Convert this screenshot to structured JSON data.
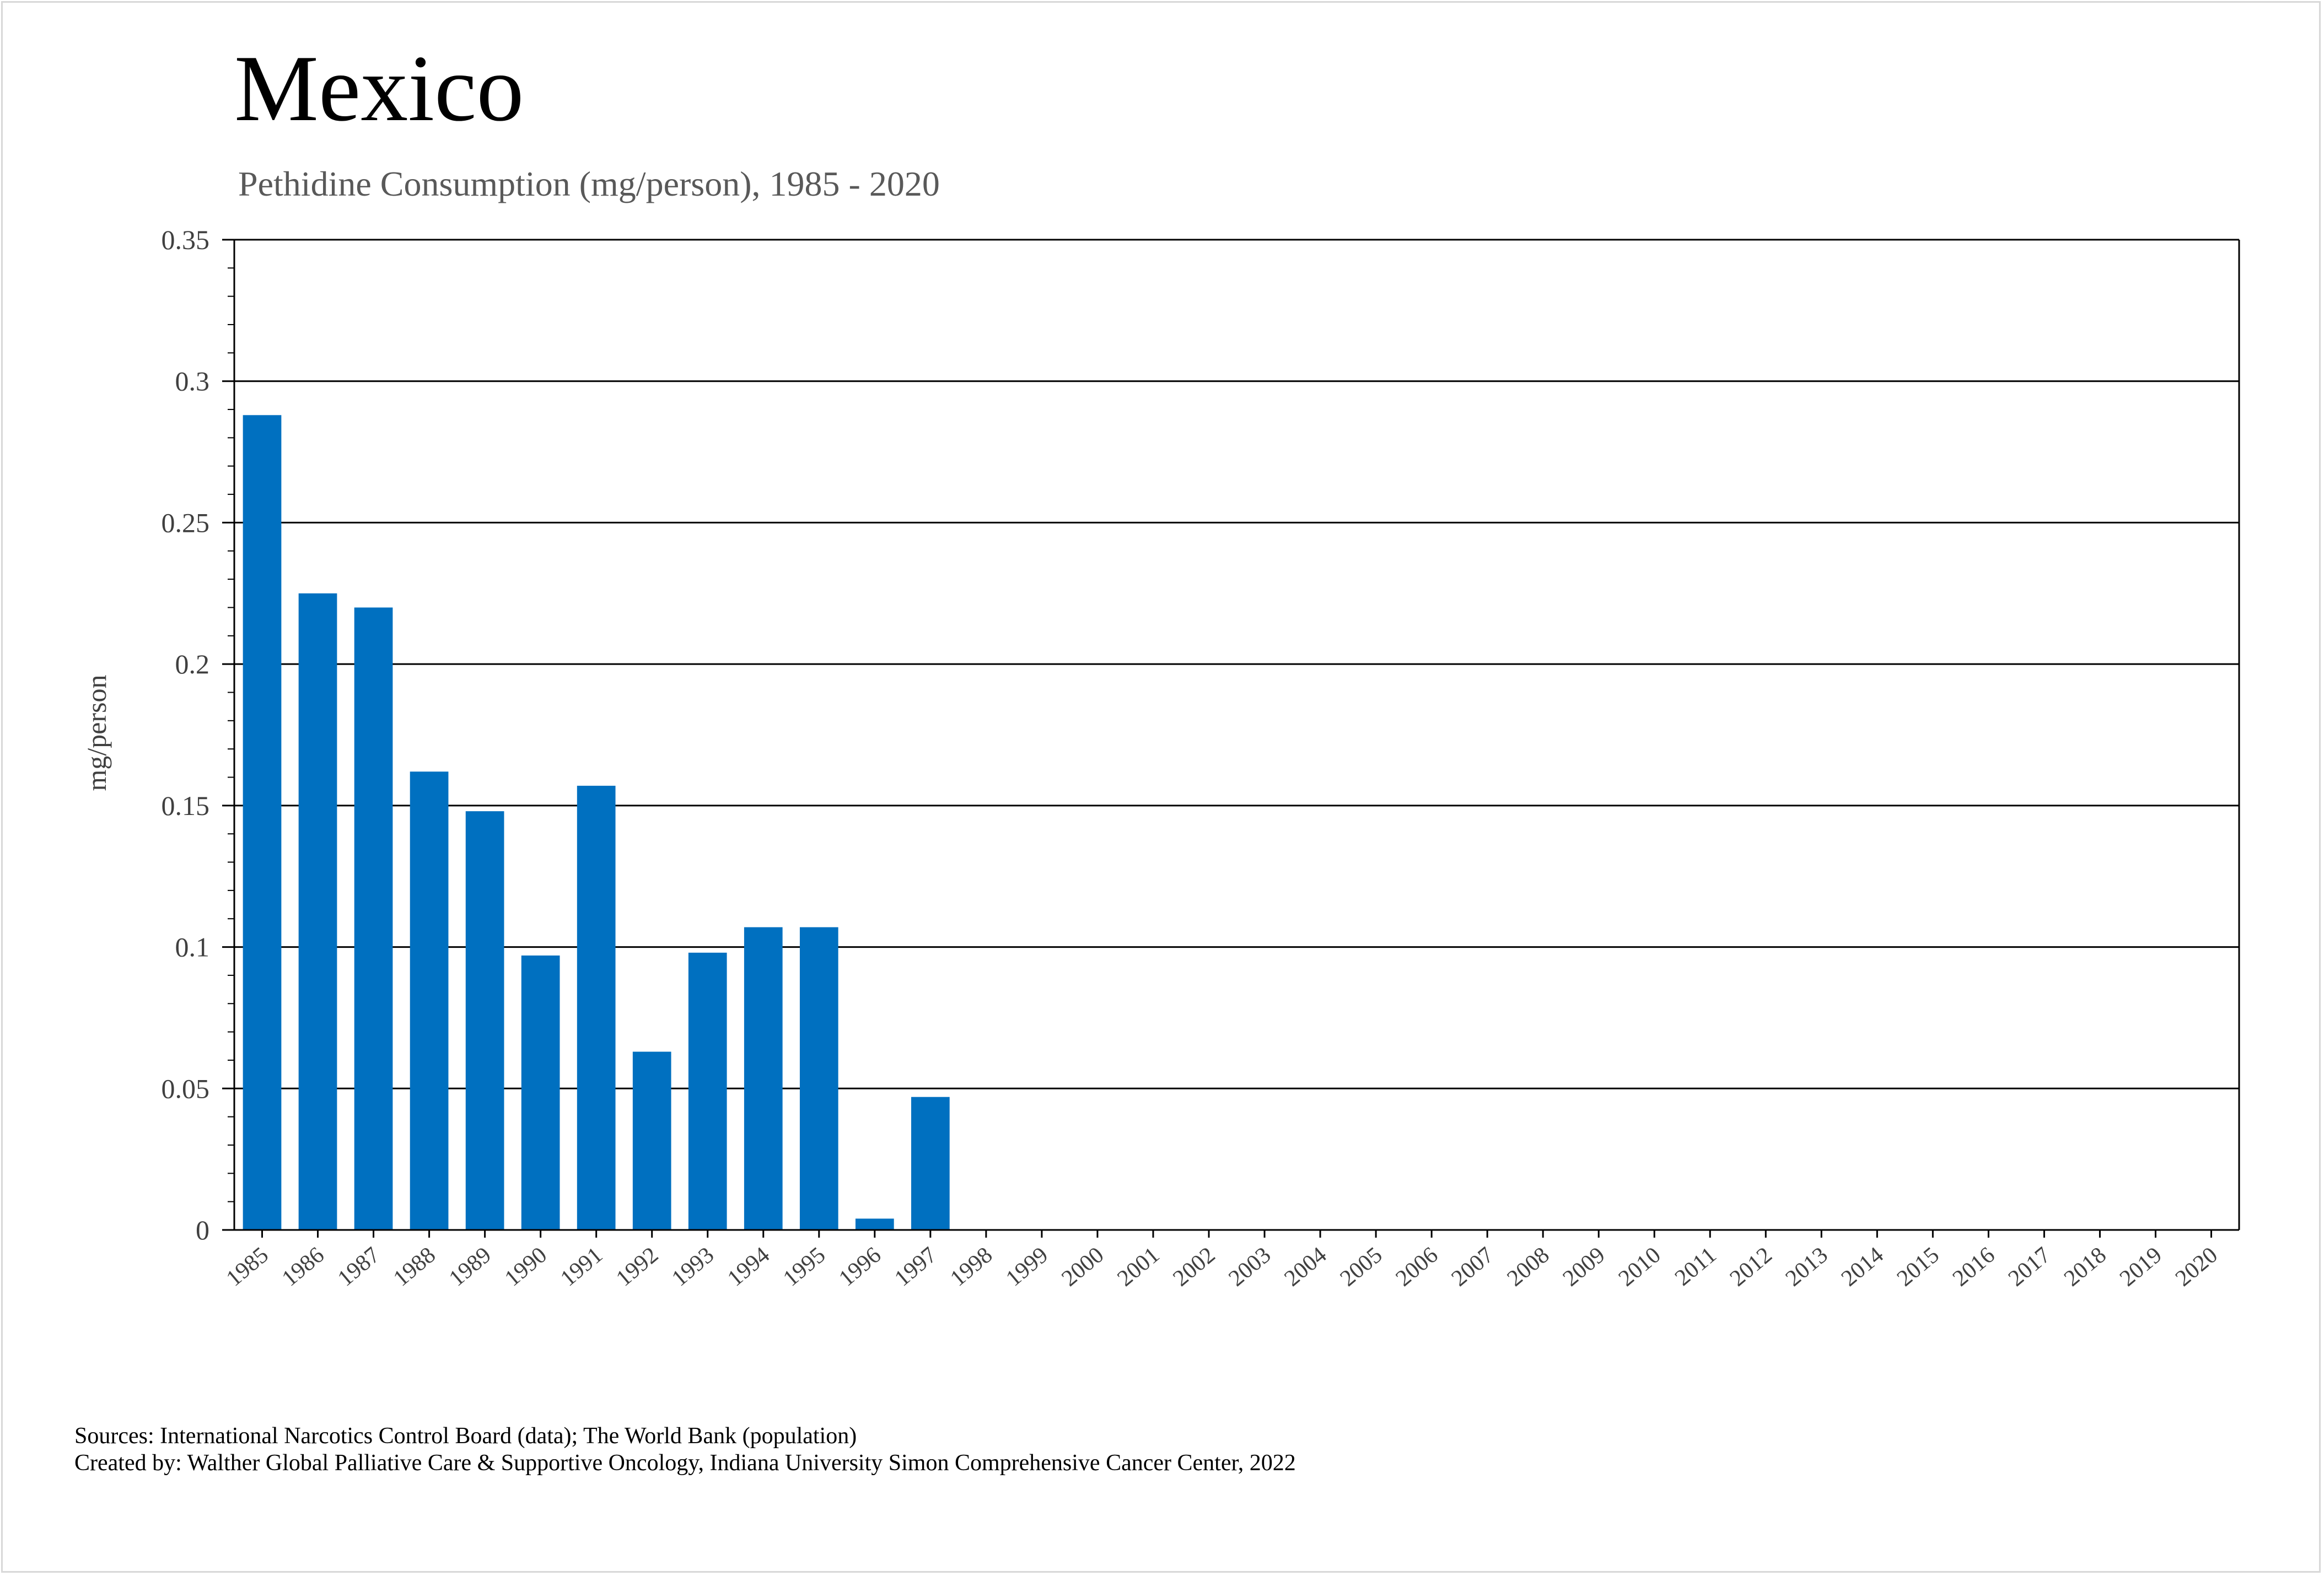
{
  "chart_data": {
    "type": "bar",
    "title": "Mexico",
    "subtitle": "Pethidine Consumption (mg/person), 1985 - 2020",
    "xlabel": "",
    "ylabel": "mg/person",
    "ylim": [
      0,
      0.35
    ],
    "yticks": [
      "0",
      "0.05",
      "0.1",
      "0.15",
      "0.2",
      "0.25",
      "0.3",
      "0.35"
    ],
    "categories": [
      "1985",
      "1986",
      "1987",
      "1988",
      "1989",
      "1990",
      "1991",
      "1992",
      "1993",
      "1994",
      "1995",
      "1996",
      "1997",
      "1998",
      "1999",
      "2000",
      "2001",
      "2002",
      "2003",
      "2004",
      "2005",
      "2006",
      "2007",
      "2008",
      "2009",
      "2010",
      "2011",
      "2012",
      "2013",
      "2014",
      "2015",
      "2016",
      "2017",
      "2018",
      "2019",
      "2020"
    ],
    "values": [
      0.288,
      0.225,
      0.22,
      0.162,
      0.148,
      0.097,
      0.157,
      0.063,
      0.098,
      0.107,
      0.107,
      0.004,
      0.047,
      0,
      0,
      0,
      0,
      0,
      0,
      0,
      0,
      0,
      0,
      0,
      0,
      0,
      0,
      0,
      0,
      0,
      0,
      0,
      0,
      0,
      0,
      0
    ],
    "bar_color": "#0070C0",
    "grid": true
  },
  "footer": {
    "sources": "Sources: International Narcotics Control Board (data); The World Bank (population)",
    "created_by": "Created by: Walther Global Palliative Care & Supportive Oncology, Indiana University Simon Comprehensive Cancer Center, 2022"
  }
}
